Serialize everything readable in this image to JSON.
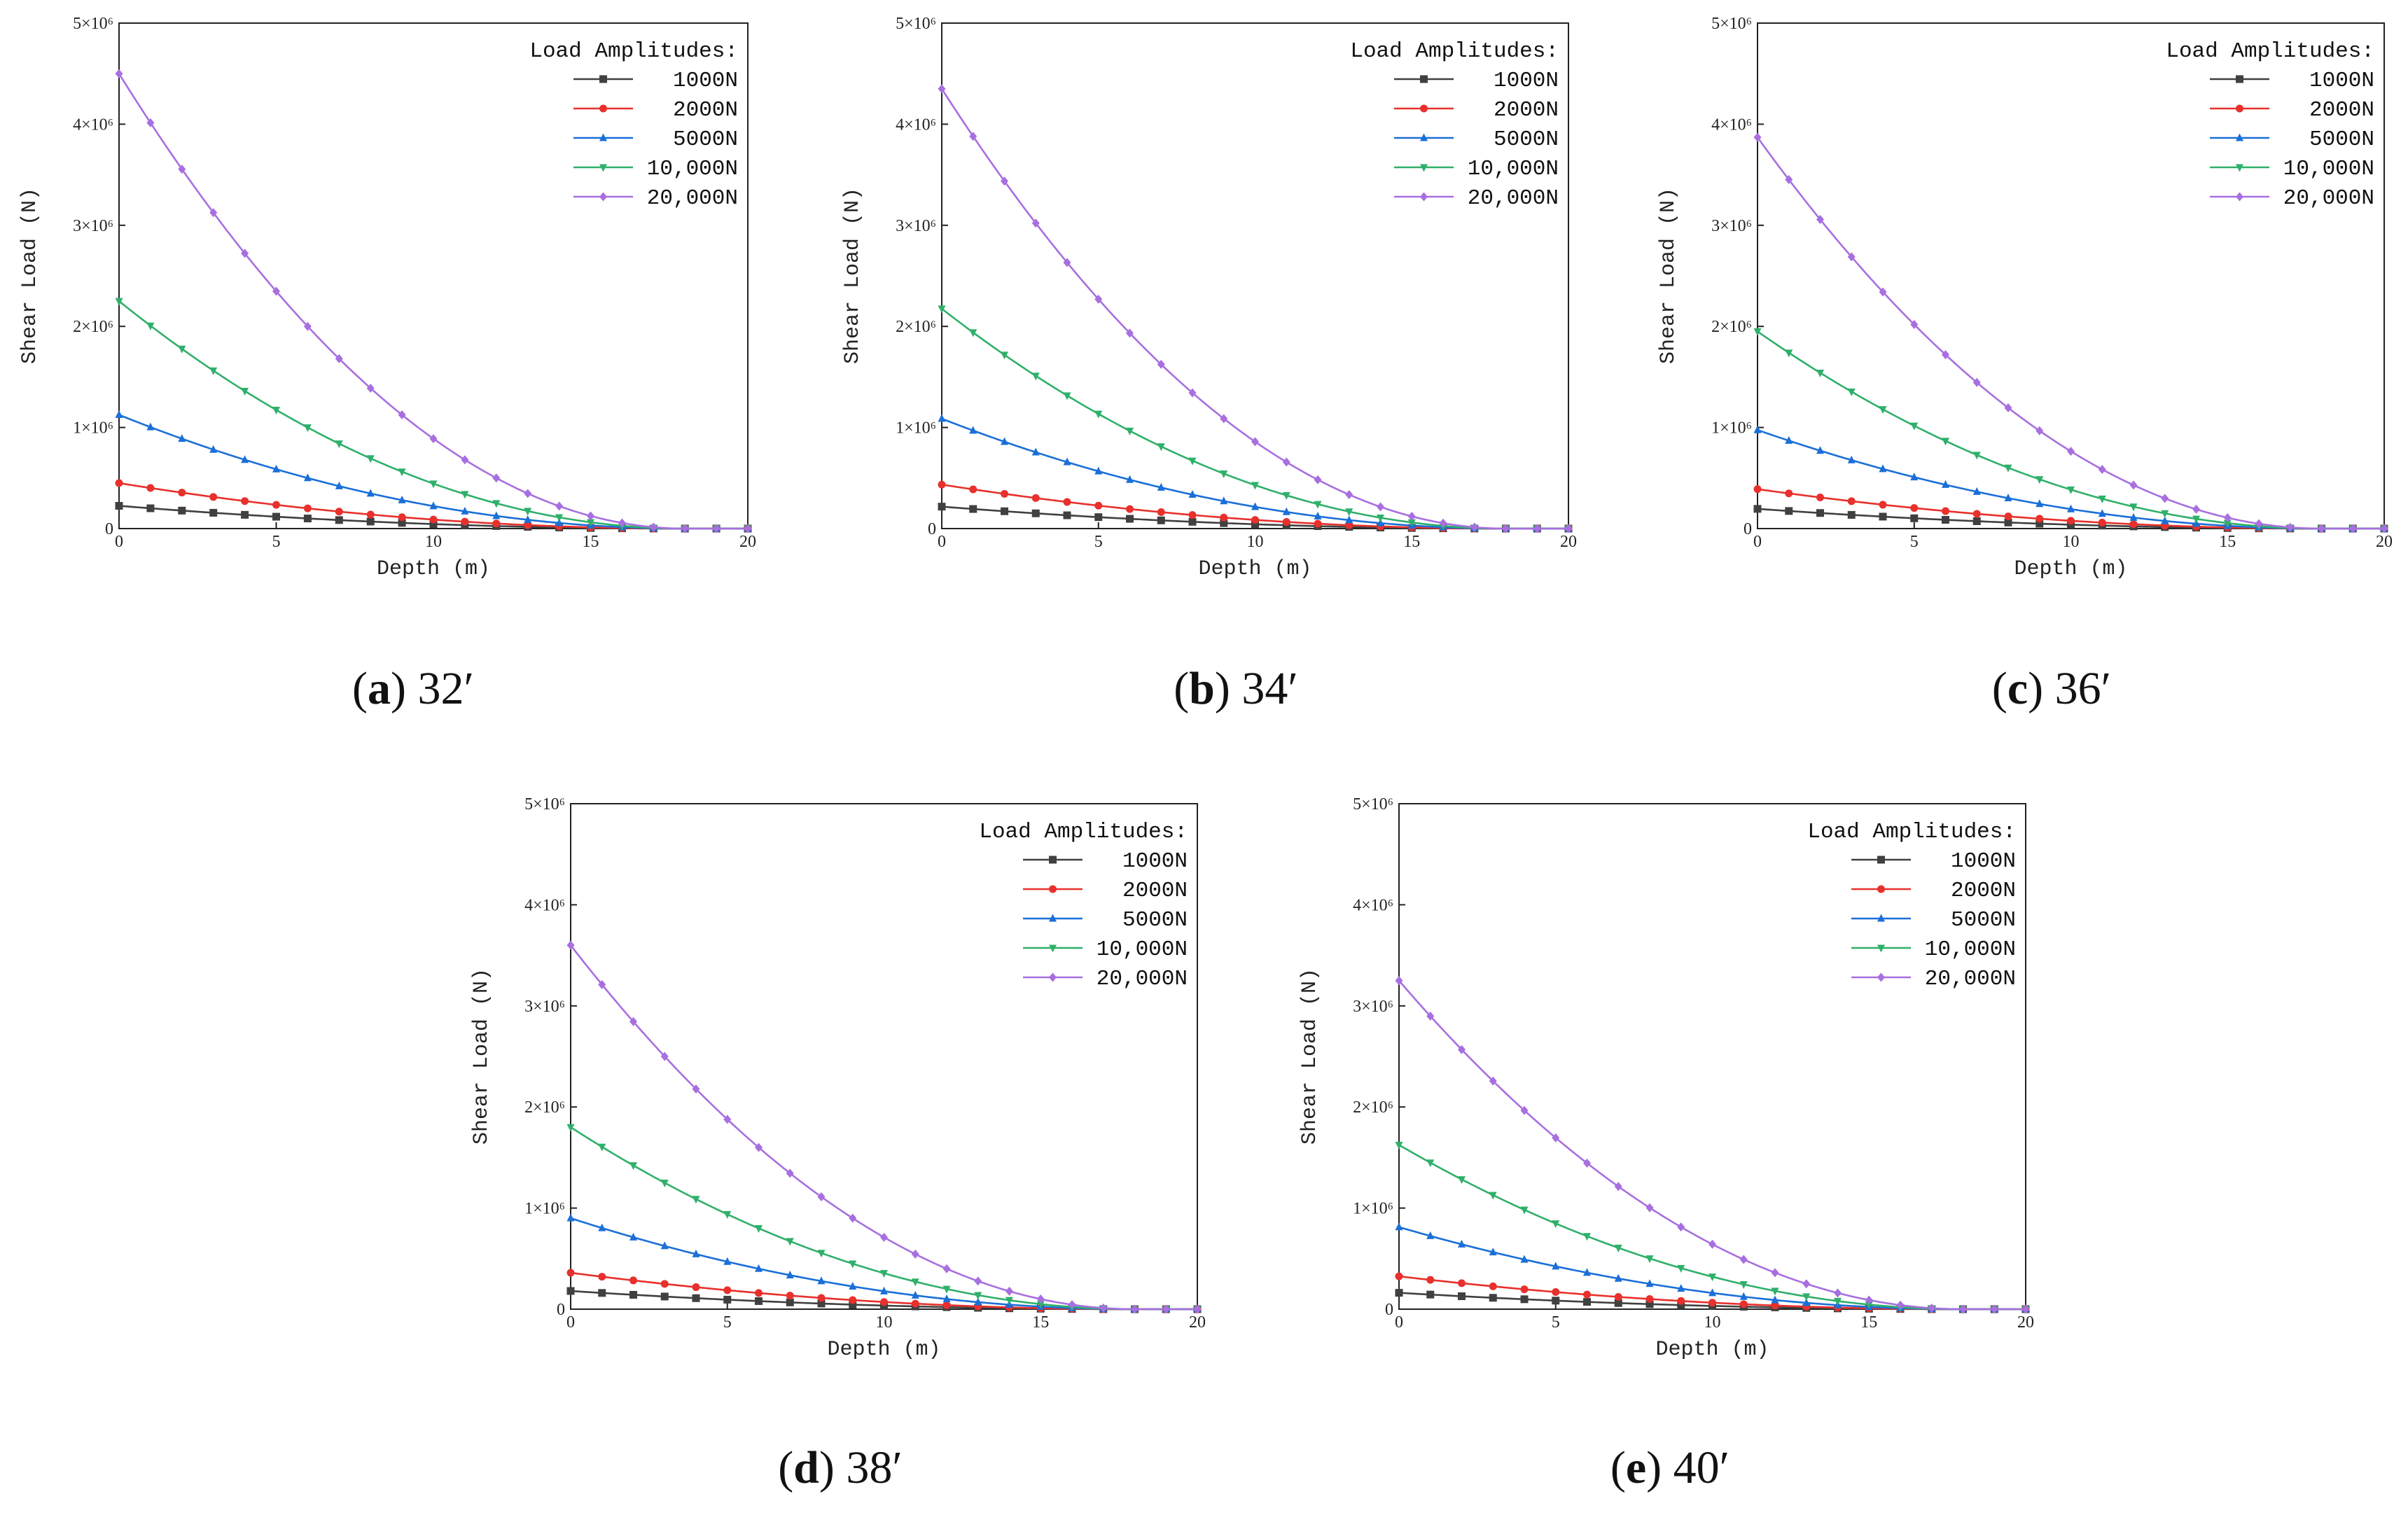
{
  "colors": {
    "1000N": "#404040",
    "2000N": "#e8302c",
    "5000N": "#1a6fd8",
    "10,000N": "#2fb06a",
    "20,000N": "#a86fe0"
  },
  "chart_data": [
    {
      "type": "line",
      "caption": {
        "label": "a",
        "value": "32′"
      },
      "xlabel": "Depth (m)",
      "ylabel": "Shear Load (N)",
      "xlim": [
        0,
        20
      ],
      "ylim": [
        0,
        5000000
      ],
      "xticks": [
        "0",
        "5",
        "10",
        "15",
        "20"
      ],
      "yticks": [
        "0",
        "1×10⁶",
        "2×10⁶",
        "3×10⁶",
        "4×10⁶",
        "5×10⁶"
      ],
      "legend_title": "Load Amplitudes:",
      "legend_position": "top-right",
      "series": [
        {
          "name": "1000N",
          "marker": "square",
          "y0": 225000
        },
        {
          "name": "2000N",
          "marker": "circle",
          "y0": 450000
        },
        {
          "name": "5000N",
          "marker": "triangle-up",
          "y0": 1125000
        },
        {
          "name": "10,000N",
          "marker": "triangle-down",
          "y0": 2250000
        },
        {
          "name": "20,000N",
          "marker": "diamond",
          "y0": 4500000
        }
      ],
      "x": [
        0,
        1,
        2,
        3,
        4,
        5,
        6,
        7,
        8,
        9,
        10,
        11,
        12,
        13,
        14,
        15,
        16,
        17,
        18,
        19,
        20
      ],
      "decay_depth": 18
    },
    {
      "type": "line",
      "caption": {
        "label": "b",
        "value": "34′"
      },
      "xlabel": "Depth (m)",
      "ylabel": "Shear Load (N)",
      "xlim": [
        0,
        20
      ],
      "ylim": [
        0,
        5000000
      ],
      "xticks": [
        "0",
        "5",
        "10",
        "15",
        "20"
      ],
      "yticks": [
        "0",
        "1×10⁶",
        "2×10⁶",
        "3×10⁶",
        "4×10⁶",
        "5×10⁶"
      ],
      "legend_title": "Load Amplitudes:",
      "legend_position": "top-right",
      "series": [
        {
          "name": "1000N",
          "marker": "square",
          "y0": 217000
        },
        {
          "name": "2000N",
          "marker": "circle",
          "y0": 435000
        },
        {
          "name": "5000N",
          "marker": "triangle-up",
          "y0": 1087000
        },
        {
          "name": "10,000N",
          "marker": "triangle-down",
          "y0": 2175000
        },
        {
          "name": "20,000N",
          "marker": "diamond",
          "y0": 4350000
        }
      ],
      "x": [
        0,
        1,
        2,
        3,
        4,
        5,
        6,
        7,
        8,
        9,
        10,
        11,
        12,
        13,
        14,
        15,
        16,
        17,
        18,
        19,
        20
      ],
      "decay_depth": 18
    },
    {
      "type": "line",
      "caption": {
        "label": "c",
        "value": "36′"
      },
      "xlabel": "Depth (m)",
      "ylabel": "Shear Load (N)",
      "xlim": [
        0,
        20
      ],
      "ylim": [
        0,
        5000000
      ],
      "xticks": [
        "0",
        "5",
        "10",
        "15",
        "20"
      ],
      "yticks": [
        "0",
        "1×10⁶",
        "2×10⁶",
        "3×10⁶",
        "4×10⁶",
        "5×10⁶"
      ],
      "legend_title": "Load Amplitudes:",
      "legend_position": "top-right",
      "series": [
        {
          "name": "1000N",
          "marker": "square",
          "y0": 195000
        },
        {
          "name": "2000N",
          "marker": "circle",
          "y0": 390000
        },
        {
          "name": "5000N",
          "marker": "triangle-up",
          "y0": 975000
        },
        {
          "name": "10,000N",
          "marker": "triangle-down",
          "y0": 1950000
        },
        {
          "name": "20,000N",
          "marker": "diamond",
          "y0": 3870000
        }
      ],
      "x": [
        0,
        1,
        2,
        3,
        4,
        5,
        6,
        7,
        8,
        9,
        10,
        11,
        12,
        13,
        14,
        15,
        16,
        17,
        18,
        19,
        20
      ],
      "decay_depth": 18
    },
    {
      "type": "line",
      "caption": {
        "label": "d",
        "value": "38′"
      },
      "xlabel": "Depth (m)",
      "ylabel": "Shear Load (N)",
      "xlim": [
        0,
        20
      ],
      "ylim": [
        0,
        5000000
      ],
      "xticks": [
        "0",
        "5",
        "10",
        "15",
        "20"
      ],
      "yticks": [
        "0",
        "1×10⁶",
        "2×10⁶",
        "3×10⁶",
        "4×10⁶",
        "5×10⁶"
      ],
      "legend_title": "Load Amplitudes:",
      "legend_position": "top-right",
      "series": [
        {
          "name": "1000N",
          "marker": "square",
          "y0": 180000
        },
        {
          "name": "2000N",
          "marker": "circle",
          "y0": 360000
        },
        {
          "name": "5000N",
          "marker": "triangle-up",
          "y0": 900000
        },
        {
          "name": "10,000N",
          "marker": "triangle-down",
          "y0": 1800000
        },
        {
          "name": "20,000N",
          "marker": "diamond",
          "y0": 3600000
        }
      ],
      "x": [
        0,
        1,
        2,
        3,
        4,
        5,
        6,
        7,
        8,
        9,
        10,
        11,
        12,
        13,
        14,
        15,
        16,
        17,
        18,
        19,
        20
      ],
      "decay_depth": 18
    },
    {
      "type": "line",
      "caption": {
        "label": "e",
        "value": "40′"
      },
      "xlabel": "Depth (m)",
      "ylabel": "Shear Load (N)",
      "xlim": [
        0,
        20
      ],
      "ylim": [
        0,
        5000000
      ],
      "xticks": [
        "0",
        "5",
        "10",
        "15",
        "20"
      ],
      "yticks": [
        "0",
        "1×10⁶",
        "2×10⁶",
        "3×10⁶",
        "4×10⁶",
        "5×10⁶"
      ],
      "legend_title": "Load Amplitudes:",
      "legend_position": "top-right",
      "series": [
        {
          "name": "1000N",
          "marker": "square",
          "y0": 162000
        },
        {
          "name": "2000N",
          "marker": "circle",
          "y0": 325000
        },
        {
          "name": "5000N",
          "marker": "triangle-up",
          "y0": 812000
        },
        {
          "name": "10,000N",
          "marker": "triangle-down",
          "y0": 1625000
        },
        {
          "name": "20,000N",
          "marker": "diamond",
          "y0": 3250000
        }
      ],
      "x": [
        0,
        1,
        2,
        3,
        4,
        5,
        6,
        7,
        8,
        9,
        10,
        11,
        12,
        13,
        14,
        15,
        16,
        17,
        18,
        19,
        20
      ],
      "decay_depth": 18
    }
  ]
}
